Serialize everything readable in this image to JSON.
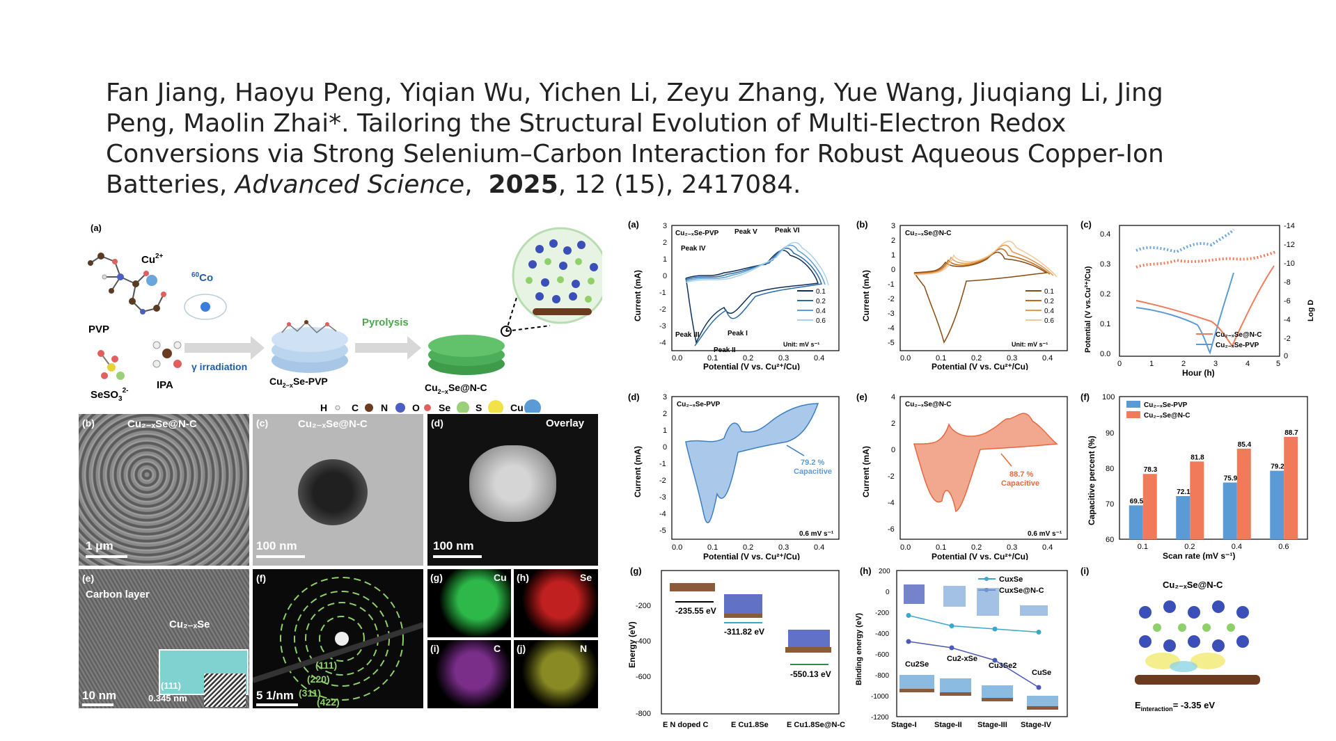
{
  "citation": {
    "authors": "Fan Jiang, Haoyu Peng, Yiqian Wu, Yichen Li, Zeyu Zhang, Yue Wang, Jiuqiang Li, Jing Peng, Maolin Zhai*.",
    "title": "Tailoring the Structural Evolution of Multi-Electron Redox Conversions via Strong Selenium–Carbon Interaction for Robust Aqueous Copper-Ion Batteries,",
    "journal": "Advanced Science",
    "year": "2025",
    "volume_issue_article": ", 12 (15), 2417084."
  },
  "synthesis_panel": {
    "label": "(a)",
    "pvp": "PVP",
    "cu_ion": "Cu",
    "cu_ion_charge": "2+",
    "seso3": "SeSO",
    "seso3_sub": "3",
    "seso3_sup": "2-",
    "ipa": "IPA",
    "co60_mass": "60",
    "co60_element": "Co",
    "gamma": "γ irradiation",
    "pyrolysis": "Pyrolysis",
    "product1_a": "Cu",
    "product1_sub": "2−x",
    "product1_b": "Se-PVP",
    "product2_a": "Cu",
    "product2_sub": "2−x",
    "product2_b": "Se@N-C",
    "legend": [
      {
        "label": "H",
        "color": "#f0f0f0"
      },
      {
        "label": "C",
        "color": "#6b3a1f"
      },
      {
        "label": "N",
        "color": "#4a5fc1"
      },
      {
        "label": "O",
        "color": "#e06060"
      },
      {
        "label": "Se",
        "color": "#9ad07a"
      },
      {
        "label": "S",
        "color": "#f1e24a"
      },
      {
        "label": "Cu",
        "color": "#5b9bd5"
      }
    ]
  },
  "micrographs": {
    "b": {
      "label": "(b)",
      "title": "Cu₂₋ₓSe@N-C",
      "scale": "1 μm"
    },
    "c": {
      "label": "(c)",
      "title": "Cu₂₋ₓSe@N-C",
      "scale": "100 nm"
    },
    "d": {
      "label": "(d)",
      "title": "Overlay",
      "scale": "100 nm"
    },
    "e": {
      "label": "(e)",
      "carbon": "Carbon layer",
      "phase": "Cu₂₋ₓSe",
      "plane": "(111)",
      "dspacing": "0.345 nm",
      "scale": "10 nm"
    },
    "f": {
      "label": "(f)",
      "rings": [
        "(111)",
        "(220)",
        "(311)",
        "(422)"
      ],
      "scale": "5 1/nm"
    },
    "g": {
      "label": "(g)",
      "element": "Cu"
    },
    "h": {
      "label": "(h)",
      "element": "Se"
    },
    "i": {
      "label": "(i)",
      "element": "C"
    },
    "j": {
      "label": "(j)",
      "element": "N"
    }
  },
  "chart_data": [
    {
      "panel": "(a)",
      "type": "line",
      "sample": "Cu₂₋ₓSe-PVP",
      "xlabel": "Potential (V vs. Cu²⁺/Cu)",
      "ylabel": "Current (mA)",
      "xlim": [
        -0.1,
        0.45
      ],
      "ylim": [
        -4.5,
        3
      ],
      "xticks": [
        "0.0",
        "0.1",
        "0.2",
        "0.3",
        "0.4"
      ],
      "yticks": [
        "3",
        "2",
        "1",
        "0",
        "-1",
        "-2",
        "-3",
        "-4"
      ],
      "series": [
        {
          "name": "0.1"
        },
        {
          "name": "0.2"
        },
        {
          "name": "0.4"
        },
        {
          "name": "0.6"
        }
      ],
      "annotations": [
        "Peak IV",
        "Peak V",
        "Peak VI",
        "Peak III",
        "Peak II",
        "Peak I"
      ],
      "unit": "Unit: mV s⁻¹"
    },
    {
      "panel": "(b)",
      "type": "line",
      "sample": "Cu₂₋ₓSe@N-C",
      "xlabel": "Potential (V vs. Cu²⁺/Cu)",
      "ylabel": "Current (mA)",
      "xlim": [
        -0.1,
        0.45
      ],
      "ylim": [
        -5.5,
        3
      ],
      "xticks": [
        "0.0",
        "0.1",
        "0.2",
        "0.3",
        "0.4"
      ],
      "yticks": [
        "3",
        "2",
        "1",
        "0",
        "-1",
        "-2",
        "-3",
        "-4",
        "-5"
      ],
      "series": [
        {
          "name": "0.1"
        },
        {
          "name": "0.2"
        },
        {
          "name": "0.4"
        },
        {
          "name": "0.6"
        }
      ],
      "unit": "Unit: mV s⁻¹"
    },
    {
      "panel": "(c)",
      "type": "line",
      "xlabel": "Hour (h)",
      "ylabel": "Potential (V vs.Cu²⁺/Cu)",
      "ylabel2": "Log D",
      "xlim": [
        0,
        5
      ],
      "ylim": [
        0,
        0.42
      ],
      "xticks": [
        "0",
        "1",
        "2",
        "3",
        "4",
        "5"
      ],
      "yticks": [
        "0.0",
        "0.1",
        "0.2",
        "0.3",
        "0.4"
      ],
      "y2ticks": [
        "-14",
        "-12",
        "-10",
        "-8",
        "-6",
        "-4",
        "-2",
        "0"
      ],
      "series": [
        {
          "name": "Cu₂₋ₓSe@N-C"
        },
        {
          "name": "Cu₂₋ₓSe-PVP"
        }
      ]
    },
    {
      "panel": "(d)",
      "type": "area",
      "sample": "Cu₂₋ₓSe-PVP",
      "xlabel": "Potential (V vs. Cu²⁺/Cu)",
      "ylabel": "Current (mA)",
      "xticks": [
        "0.0",
        "0.1",
        "0.2",
        "0.3",
        "0.4"
      ],
      "yticks": [
        "3",
        "2",
        "1",
        "0",
        "-1",
        "-2",
        "-3",
        "-4",
        "-5"
      ],
      "capacitive": "79.2 %",
      "capacitive_label": "Capacitive",
      "rate": "0.6 mV s⁻¹"
    },
    {
      "panel": "(e)",
      "type": "area",
      "sample": "Cu₂₋ₓSe@N-C",
      "xlabel": "Potential (V vs. Cu²⁺/Cu)",
      "ylabel": "Current (mA)",
      "xticks": [
        "0.0",
        "0.1",
        "0.2",
        "0.3",
        "0.4"
      ],
      "yticks": [
        "4",
        "2",
        "0",
        "-2",
        "-4",
        "-6"
      ],
      "capacitive": "88.7 %",
      "capacitive_label": "Capacitive",
      "rate": "0.6 mV s⁻¹"
    },
    {
      "panel": "(f)",
      "type": "bar",
      "xlabel": "Scan rate (mV s⁻¹)",
      "ylabel": "Capacitive percent (%)",
      "categories": [
        "0.1",
        "0.2",
        "0.4",
        "0.6"
      ],
      "ylim": [
        60,
        100
      ],
      "yticks": [
        "100",
        "90",
        "80",
        "70",
        "60"
      ],
      "series": [
        {
          "name": "Cu₂₋ₓSe-PVP",
          "values": [
            69.5,
            72.1,
            75.9,
            79.2
          ],
          "color": "#5b9bd5"
        },
        {
          "name": "Cu₂₋ₓSe@N-C",
          "values": [
            78.3,
            81.8,
            85.4,
            88.7
          ],
          "color": "#f07a5a"
        }
      ],
      "value_labels": [
        [
          "69.5",
          "72.1",
          "75.9",
          "79.2"
        ],
        [
          "78.3",
          "81.8",
          "85.4",
          "88.7"
        ]
      ]
    },
    {
      "panel": "(g)",
      "type": "bar",
      "ylabel": "Energy (eV)",
      "ylim": [
        -800,
        -100
      ],
      "yticks": [
        "-200",
        "-400",
        "-600",
        "-800"
      ],
      "categories": [
        "E N doped C",
        "E Cu1.8Se",
        "E Cu1.8Se@N-C"
      ],
      "values": [
        -235.55,
        -311.82,
        -550.13
      ],
      "value_labels": [
        "-235.55 eV",
        "-311.82 eV",
        "-550.13 eV"
      ]
    },
    {
      "panel": "(h)",
      "type": "line",
      "ylabel": "Binding energy (eV)",
      "ylim": [
        -1200,
        200
      ],
      "yticks": [
        "200",
        "0",
        "-200",
        "-400",
        "-600",
        "-800",
        "-1000",
        "-1200"
      ],
      "categories": [
        "Stage-I",
        "Stage-II",
        "Stage-III",
        "Stage-IV"
      ],
      "series": [
        {
          "name": "CuxSe",
          "values": [
            -230,
            -330,
            -360,
            -390
          ],
          "color": "#3ba7c9"
        },
        {
          "name": "CuxSe@N-C",
          "values": [
            -480,
            -540,
            -660,
            -920
          ],
          "color": "#4a5ab5"
        }
      ],
      "annotations": [
        "Cu2Se",
        "Cu2-xSe",
        "Cu3Se2",
        "CuSe"
      ]
    },
    {
      "panel": "(i)",
      "type": "table",
      "title": "Cu₂₋ₓSe@N-C",
      "interaction": "E",
      "interaction_sub": "interaction",
      "interaction_value": "= -3.35 eV"
    }
  ]
}
